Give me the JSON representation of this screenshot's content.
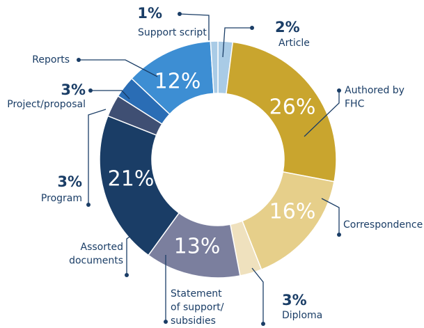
{
  "chart_data": {
    "type": "donut",
    "categories": [
      "Article",
      "Authored by FHC",
      "Correspondence",
      "Diploma",
      "Statement of support/ subsidies",
      "Assorted documents",
      "Program",
      "Project/proposal",
      "Reports",
      "Support script"
    ],
    "values": [
      2,
      26,
      16,
      3,
      13,
      21,
      3,
      3,
      12,
      1
    ],
    "value_labels": [
      "2%",
      "26%",
      "16%",
      "3%",
      "13%",
      "21%",
      "3%",
      "3%",
      "12%",
      "1%"
    ],
    "colors": [
      "#a9cbe6",
      "#c9a52e",
      "#e6cf8a",
      "#efe1be",
      "#7b7f9e",
      "#1a3d66",
      "#3f4f73",
      "#2a6db5",
      "#3d8ed3",
      "#a9cbe6"
    ]
  }
}
